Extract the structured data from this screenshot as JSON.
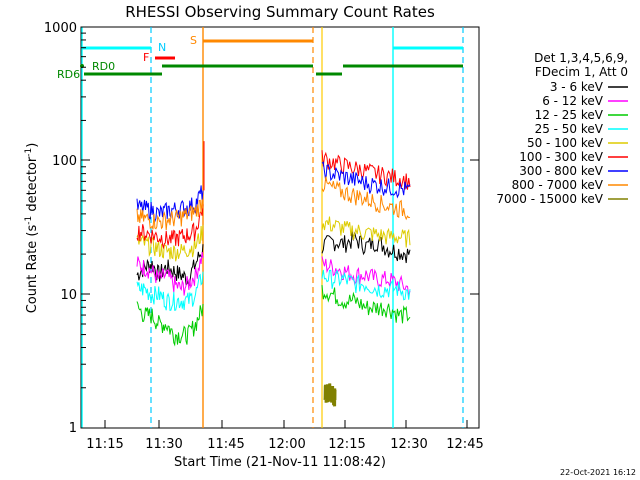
{
  "chart_data": {
    "type": "line",
    "title": "RHESSI Observing Summary Count Rates",
    "xlabel": "Start Time (21-Nov-11 11:08:42)",
    "ylabel": "Count Rate (s",
    "ylabel_sup": "-1",
    "ylabel_mid": " detector",
    "ylabel_end": ")",
    "y_scale": "log",
    "ylim": [
      1,
      1000
    ],
    "xlim_minutes": [
      11.1667,
      12.8
    ],
    "x_ticks": [
      "11:15",
      "11:30",
      "11:45",
      "12:00",
      "12:15",
      "12:30",
      "12:45"
    ],
    "y_ticks": [
      "1",
      "10",
      "100",
      "1000"
    ],
    "legend_header": [
      "Det 1,3,4,5,6,9,",
      "FDecim 1, Att 0"
    ],
    "series": [
      {
        "name": "3 - 6 keV",
        "color": "#000000",
        "seg1": [
          14,
          16,
          17,
          14,
          16,
          15,
          14,
          13,
          17,
          22
        ],
        "seg2": [
          23,
          25,
          24,
          26,
          23,
          25,
          22,
          21,
          20
        ]
      },
      {
        "name": "6 - 12 keV",
        "color": "#ff00ff",
        "seg1": [
          17,
          16,
          15,
          13,
          14,
          12,
          11,
          12,
          14,
          20
        ],
        "seg2": [
          17,
          16,
          15,
          14,
          14,
          13,
          13,
          12,
          11
        ]
      },
      {
        "name": "12 - 25 keV",
        "color": "#00cc00",
        "seg1": [
          8,
          7,
          7,
          6,
          6,
          5,
          5,
          5,
          6,
          8
        ],
        "seg2": [
          11,
          10,
          9,
          9,
          8,
          8,
          8,
          7,
          7
        ]
      },
      {
        "name": "25 - 50 keV",
        "color": "#00ffff",
        "seg1": [
          11,
          11,
          10,
          10,
          9,
          9,
          9,
          9,
          10,
          14
        ],
        "seg2": [
          14,
          13,
          13,
          12,
          12,
          11,
          11,
          11,
          10
        ]
      },
      {
        "name": "50 - 100 keV",
        "color": "#ddcc00",
        "seg1": [
          25,
          24,
          23,
          22,
          21,
          21,
          21,
          22,
          23,
          30
        ],
        "seg2": [
          35,
          33,
          31,
          30,
          29,
          28,
          27,
          27,
          26
        ]
      },
      {
        "name": "100 - 300 keV",
        "color": "#ff0000",
        "seg1": [
          30,
          29,
          28,
          27,
          26,
          26,
          27,
          28,
          30,
          45
        ],
        "seg2": [
          105,
          98,
          92,
          88,
          84,
          80,
          77,
          74,
          70
        ]
      },
      {
        "name": "300 - 800 keV",
        "color": "#0000ff",
        "seg1": [
          45,
          44,
          43,
          40,
          42,
          43,
          44,
          45,
          48,
          60
        ],
        "seg2": [
          85,
          80,
          76,
          72,
          68,
          66,
          64,
          62,
          60
        ]
      },
      {
        "name": "800 - 7000 keV",
        "color": "#ff8800",
        "seg1": [
          38,
          37,
          36,
          35,
          36,
          37,
          38,
          40,
          42,
          50
        ],
        "seg2": [
          68,
          62,
          58,
          55,
          52,
          49,
          46,
          44,
          42
        ]
      },
      {
        "name": "7000 - 15000 keV",
        "color": "#808000",
        "seg1": [],
        "seg2": [
          1.8,
          1.9,
          1.7
        ]
      }
    ],
    "flags": [
      {
        "label": "N",
        "color": "#00ccff"
      },
      {
        "label": "F",
        "color": "#ff0000"
      },
      {
        "label": "S",
        "color": "#ff8800"
      },
      {
        "label": "RD0",
        "color": "#008800"
      },
      {
        "label": "RD6",
        "color": "#008800"
      }
    ],
    "footer_date": "22-Oct-2021 16:12"
  }
}
